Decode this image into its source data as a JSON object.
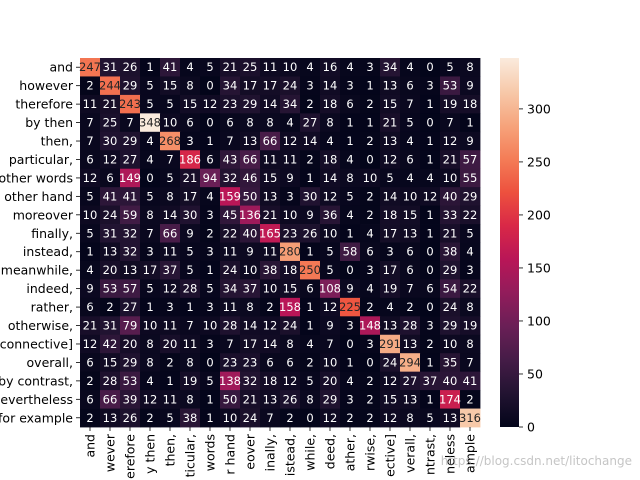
{
  "chart_data": {
    "type": "heatmap",
    "title": "",
    "xlabel": "",
    "ylabel": "",
    "row_labels": [
      "and",
      "however",
      "therefore",
      "by then",
      "then,",
      "particular,",
      "other words",
      "other hand",
      "moreover",
      "finally,",
      "instead,",
      "meanwhile,",
      "indeed,",
      "rather,",
      "otherwise,",
      "connective]",
      "overall,",
      "by contrast,",
      "nevertheless",
      "for example"
    ],
    "col_labels": [
      "and",
      "wever",
      "erefore",
      "y then",
      "then,",
      "ticular,",
      "words",
      "r hand",
      "eover",
      "inally,",
      "istead,",
      "while,",
      "deed,",
      "ather,",
      "rwise,",
      "ective]",
      "verall,",
      "ntrast,",
      "neless",
      "ample"
    ],
    "values": [
      [
        247,
        31,
        26,
        1,
        41,
        4,
        5,
        21,
        25,
        11,
        10,
        4,
        16,
        4,
        3,
        34,
        4,
        0,
        5,
        8
      ],
      [
        2,
        244,
        29,
        5,
        15,
        8,
        0,
        34,
        17,
        17,
        24,
        3,
        14,
        3,
        1,
        13,
        6,
        3,
        53,
        9
      ],
      [
        11,
        21,
        243,
        5,
        5,
        15,
        12,
        23,
        29,
        14,
        34,
        2,
        18,
        6,
        2,
        15,
        7,
        1,
        19,
        18
      ],
      [
        7,
        25,
        7,
        348,
        10,
        6,
        0,
        6,
        8,
        8,
        4,
        27,
        8,
        1,
        1,
        21,
        5,
        0,
        7,
        1
      ],
      [
        7,
        30,
        29,
        4,
        268,
        3,
        1,
        7,
        13,
        66,
        12,
        14,
        4,
        1,
        2,
        13,
        4,
        1,
        12,
        9
      ],
      [
        6,
        12,
        27,
        4,
        7,
        186,
        6,
        43,
        66,
        11,
        11,
        2,
        18,
        4,
        0,
        12,
        6,
        1,
        21,
        57
      ],
      [
        12,
        6,
        149,
        0,
        5,
        21,
        94,
        32,
        46,
        15,
        9,
        1,
        14,
        8,
        10,
        5,
        4,
        4,
        10,
        55
      ],
      [
        5,
        41,
        41,
        5,
        8,
        17,
        4,
        159,
        50,
        13,
        3,
        30,
        12,
        5,
        2,
        14,
        10,
        12,
        40,
        29
      ],
      [
        10,
        24,
        59,
        8,
        14,
        30,
        3,
        45,
        136,
        21,
        10,
        9,
        36,
        4,
        2,
        18,
        15,
        1,
        33,
        22
      ],
      [
        5,
        31,
        32,
        7,
        66,
        9,
        2,
        22,
        40,
        165,
        23,
        26,
        10,
        1,
        4,
        17,
        13,
        1,
        21,
        5
      ],
      [
        1,
        13,
        32,
        3,
        11,
        5,
        3,
        11,
        9,
        11,
        280,
        1,
        5,
        58,
        6,
        3,
        6,
        0,
        38,
        4
      ],
      [
        4,
        20,
        13,
        17,
        37,
        5,
        1,
        24,
        10,
        38,
        18,
        250,
        5,
        0,
        3,
        17,
        6,
        0,
        29,
        3
      ],
      [
        9,
        53,
        57,
        5,
        12,
        28,
        5,
        34,
        37,
        10,
        15,
        6,
        108,
        9,
        4,
        19,
        7,
        6,
        54,
        22
      ],
      [
        6,
        2,
        27,
        1,
        3,
        1,
        3,
        11,
        8,
        2,
        158,
        1,
        12,
        225,
        2,
        4,
        2,
        0,
        24,
        8
      ],
      [
        21,
        31,
        79,
        10,
        11,
        7,
        10,
        28,
        14,
        12,
        24,
        1,
        9,
        3,
        148,
        13,
        28,
        3,
        29,
        19
      ],
      [
        12,
        42,
        20,
        8,
        20,
        11,
        3,
        7,
        17,
        14,
        8,
        4,
        7,
        0,
        3,
        291,
        13,
        2,
        10,
        8
      ],
      [
        6,
        15,
        29,
        8,
        2,
        8,
        0,
        23,
        23,
        6,
        6,
        2,
        10,
        1,
        0,
        24,
        294,
        1,
        35,
        7
      ],
      [
        2,
        28,
        53,
        4,
        1,
        19,
        5,
        138,
        32,
        18,
        12,
        5,
        20,
        4,
        2,
        12,
        27,
        37,
        40,
        41
      ],
      [
        6,
        66,
        39,
        12,
        11,
        8,
        1,
        50,
        21,
        13,
        26,
        8,
        29,
        3,
        2,
        15,
        13,
        1,
        174,
        2
      ],
      [
        2,
        13,
        26,
        2,
        5,
        38,
        1,
        10,
        24,
        7,
        2,
        0,
        12,
        2,
        2,
        12,
        8,
        5,
        13,
        316
      ]
    ],
    "colorbar": {
      "min": 0,
      "max": 348,
      "ticks": [
        0,
        50,
        100,
        150,
        200,
        250,
        300
      ]
    },
    "grid": false,
    "legend": "colorbar-right",
    "colormap": [
      "#03051a",
      "#221331",
      "#451c47",
      "#6a1f56",
      "#921c5b",
      "#b91657",
      "#d92847",
      "#ed513e",
      "#f47d57",
      "#f6a47c",
      "#f7c9aa",
      "#faebdd"
    ]
  },
  "watermark": "https://blog.csdn.net/litochange"
}
